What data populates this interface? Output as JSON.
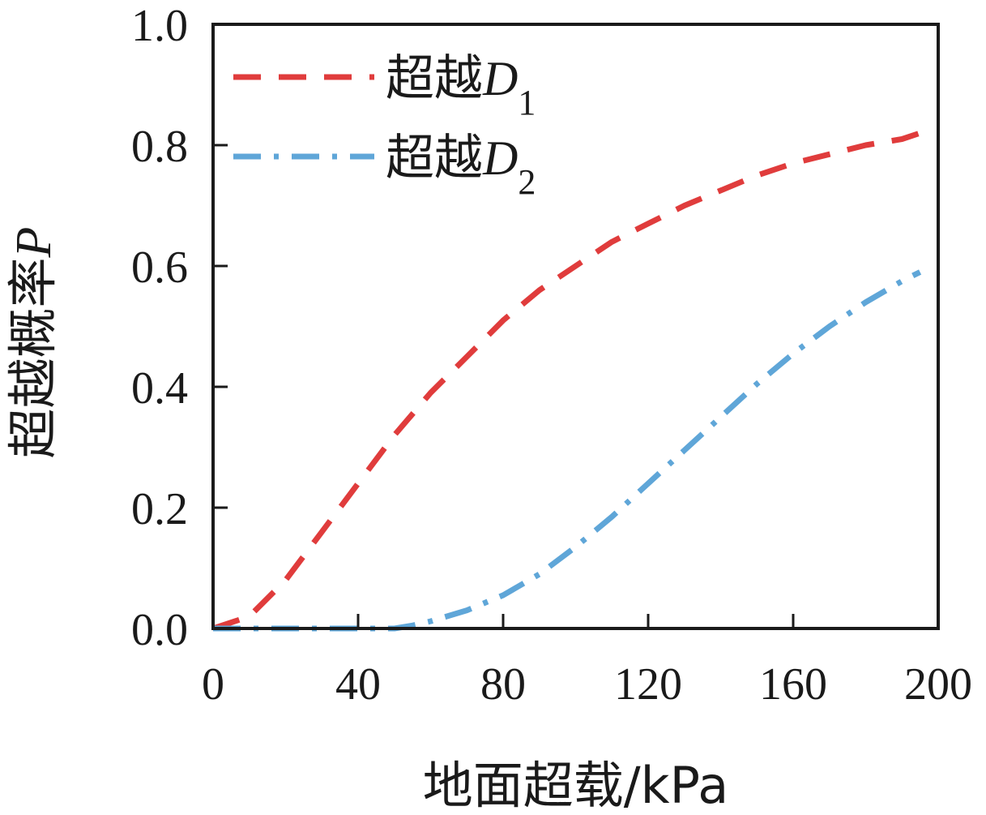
{
  "chart_data": {
    "type": "line",
    "title": "",
    "xlabel": "地面超载/kPa",
    "ylabel": {
      "text": "超越概率",
      "var": "P"
    },
    "xlim": [
      0,
      200
    ],
    "ylim": [
      0,
      1
    ],
    "xticks": [
      "0",
      "40",
      "80",
      "120",
      "160",
      "200"
    ],
    "yticks": [
      "0.0",
      "0.2",
      "0.4",
      "0.6",
      "0.8",
      "1.0"
    ],
    "grid": false,
    "legend_position": "top-left",
    "series": [
      {
        "name": {
          "prefix": "超越",
          "var": "D",
          "sub": "1"
        },
        "color": "#e03c3c",
        "style": "dashed",
        "x": [
          0,
          10,
          20,
          30,
          40,
          50,
          60,
          70,
          80,
          90,
          100,
          110,
          120,
          130,
          140,
          150,
          160,
          170,
          180,
          190,
          195
        ],
        "y": [
          0.0,
          0.02,
          0.08,
          0.16,
          0.24,
          0.32,
          0.39,
          0.45,
          0.51,
          0.56,
          0.6,
          0.64,
          0.67,
          0.7,
          0.725,
          0.75,
          0.77,
          0.785,
          0.8,
          0.81,
          0.82
        ]
      },
      {
        "name": {
          "prefix": "超越",
          "var": "D",
          "sub": "2"
        },
        "color": "#5fa6d8",
        "style": "dashdot",
        "x": [
          0,
          10,
          20,
          30,
          40,
          50,
          55,
          60,
          70,
          80,
          90,
          100,
          110,
          120,
          130,
          140,
          150,
          160,
          170,
          180,
          190,
          195
        ],
        "y": [
          0.0,
          0.0,
          0.0,
          0.0,
          0.0,
          0.0,
          0.005,
          0.012,
          0.03,
          0.055,
          0.09,
          0.135,
          0.185,
          0.24,
          0.295,
          0.35,
          0.405,
          0.455,
          0.5,
          0.54,
          0.575,
          0.59
        ]
      }
    ]
  }
}
